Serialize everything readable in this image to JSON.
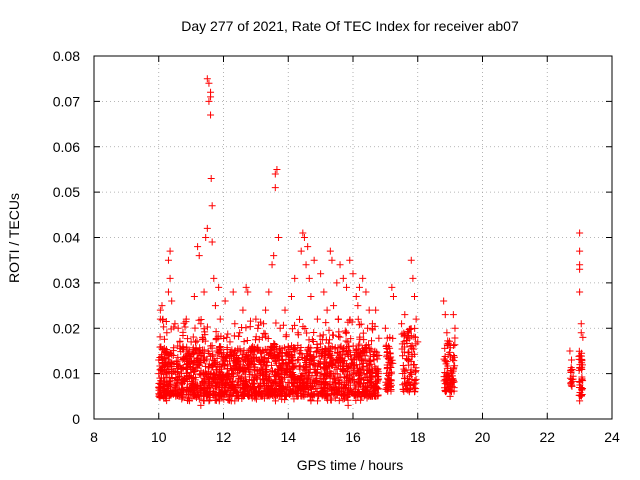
{
  "chart_data": {
    "type": "scatter",
    "title": "Day 277 of 2021, Rate Of TEC Index for receiver ab07",
    "xlabel": "GPS time / hours",
    "ylabel": "ROTI / TECUs",
    "xlim": [
      8,
      24
    ],
    "ylim": [
      0,
      0.08
    ],
    "x_ticks": [
      "8",
      "10",
      "12",
      "14",
      "16",
      "18",
      "20",
      "22",
      "24"
    ],
    "y_ticks": [
      "0",
      "0.01",
      "0.02",
      "0.03",
      "0.04",
      "0.05",
      "0.06",
      "0.07",
      "0.08"
    ],
    "grid": true,
    "marker": "+",
    "color": "#ff0000",
    "series": [
      {
        "points": [
          [
            10.0,
            0.01
          ],
          [
            10.0,
            0.013
          ],
          [
            10.0,
            0.007
          ],
          [
            10.05,
            0.024
          ],
          [
            10.05,
            0.022
          ],
          [
            10.1,
            0.025
          ],
          [
            10.1,
            0.011
          ],
          [
            10.15,
            0.009
          ],
          [
            10.2,
            0.015
          ],
          [
            10.25,
            0.019
          ],
          [
            10.3,
            0.028
          ],
          [
            10.3,
            0.035
          ],
          [
            10.35,
            0.037
          ],
          [
            10.35,
            0.031
          ],
          [
            10.4,
            0.026
          ],
          [
            10.45,
            0.014
          ],
          [
            10.5,
            0.021
          ],
          [
            10.55,
            0.012
          ],
          [
            10.6,
            0.02
          ],
          [
            10.65,
            0.017
          ],
          [
            10.7,
            0.01
          ],
          [
            10.8,
            0.013
          ],
          [
            10.85,
            0.022
          ],
          [
            10.9,
            0.015
          ],
          [
            11.0,
            0.017
          ],
          [
            11.05,
            0.011
          ],
          [
            11.1,
            0.027
          ],
          [
            11.15,
            0.012
          ],
          [
            11.2,
            0.038
          ],
          [
            11.25,
            0.036
          ],
          [
            11.3,
            0.021
          ],
          [
            11.35,
            0.018
          ],
          [
            11.4,
            0.028
          ],
          [
            11.45,
            0.04
          ],
          [
            11.5,
            0.042
          ],
          [
            11.5,
            0.075
          ],
          [
            11.55,
            0.074
          ],
          [
            11.55,
            0.07
          ],
          [
            11.6,
            0.072
          ],
          [
            11.6,
            0.067
          ],
          [
            11.6,
            0.071
          ],
          [
            11.62,
            0.053
          ],
          [
            11.65,
            0.047
          ],
          [
            11.65,
            0.039
          ],
          [
            11.7,
            0.031
          ],
          [
            11.75,
            0.025
          ],
          [
            11.8,
            0.015
          ],
          [
            11.85,
            0.029
          ],
          [
            11.9,
            0.022
          ],
          [
            12.0,
            0.013
          ],
          [
            12.05,
            0.026
          ],
          [
            12.1,
            0.018
          ],
          [
            12.2,
            0.017
          ],
          [
            12.3,
            0.028
          ],
          [
            12.35,
            0.021
          ],
          [
            12.4,
            0.014
          ],
          [
            12.5,
            0.019
          ],
          [
            12.6,
            0.024
          ],
          [
            12.7,
            0.029
          ],
          [
            12.75,
            0.028
          ],
          [
            12.8,
            0.012
          ],
          [
            12.9,
            0.016
          ],
          [
            13.0,
            0.022
          ],
          [
            13.1,
            0.013
          ],
          [
            13.2,
            0.018
          ],
          [
            13.3,
            0.024
          ],
          [
            13.4,
            0.028
          ],
          [
            13.5,
            0.034
          ],
          [
            13.55,
            0.036
          ],
          [
            13.6,
            0.051
          ],
          [
            13.6,
            0.054
          ],
          [
            13.65,
            0.055
          ],
          [
            13.7,
            0.04
          ],
          [
            13.75,
            0.02
          ],
          [
            13.8,
            0.011
          ],
          [
            13.9,
            0.024
          ],
          [
            14.0,
            0.016
          ],
          [
            14.1,
            0.027
          ],
          [
            14.2,
            0.031
          ],
          [
            14.3,
            0.019
          ],
          [
            14.4,
            0.037
          ],
          [
            14.45,
            0.041
          ],
          [
            14.5,
            0.04
          ],
          [
            14.55,
            0.034
          ],
          [
            14.6,
            0.038
          ],
          [
            14.65,
            0.031
          ],
          [
            14.7,
            0.027
          ],
          [
            14.8,
            0.035
          ],
          [
            14.9,
            0.022
          ],
          [
            15.0,
            0.032
          ],
          [
            15.1,
            0.028
          ],
          [
            15.2,
            0.024
          ],
          [
            15.3,
            0.037
          ],
          [
            15.35,
            0.035
          ],
          [
            15.4,
            0.025
          ],
          [
            15.5,
            0.03
          ],
          [
            15.55,
            0.022
          ],
          [
            15.6,
            0.034
          ],
          [
            15.7,
            0.031
          ],
          [
            15.8,
            0.029
          ],
          [
            15.9,
            0.035
          ],
          [
            16.0,
            0.032
          ],
          [
            16.1,
            0.027
          ],
          [
            16.15,
            0.025
          ],
          [
            16.2,
            0.029
          ],
          [
            16.3,
            0.031
          ],
          [
            16.4,
            0.028
          ],
          [
            16.5,
            0.024
          ],
          [
            16.6,
            0.021
          ],
          [
            16.7,
            0.024
          ],
          [
            16.8,
            0.014
          ],
          [
            17.0,
            0.02
          ],
          [
            17.1,
            0.016
          ],
          [
            17.2,
            0.029
          ],
          [
            17.25,
            0.027
          ],
          [
            17.5,
            0.021
          ],
          [
            17.6,
            0.023
          ],
          [
            17.8,
            0.035
          ],
          [
            17.85,
            0.031
          ],
          [
            17.9,
            0.027
          ],
          [
            17.95,
            0.022
          ],
          [
            18.0,
            0.017
          ],
          [
            18.8,
            0.026
          ],
          [
            18.85,
            0.023
          ],
          [
            18.9,
            0.019
          ],
          [
            19.1,
            0.023
          ],
          [
            19.15,
            0.02
          ],
          [
            22.7,
            0.015
          ],
          [
            22.75,
            0.013
          ],
          [
            23.0,
            0.041
          ],
          [
            23.0,
            0.037
          ],
          [
            23.0,
            0.034
          ],
          [
            23.0,
            0.033
          ],
          [
            23.0,
            0.028
          ],
          [
            23.05,
            0.021
          ],
          [
            23.05,
            0.019
          ],
          [
            23.1,
            0.018
          ],
          [
            12.2,
            0.005
          ],
          [
            11.3,
            0.003
          ],
          [
            15.85,
            0.003
          ],
          [
            16.6,
            0.005
          ],
          [
            14.7,
            0.004
          ],
          [
            17.9,
            0.006
          ],
          [
            19.0,
            0.005
          ],
          [
            23.0,
            0.004
          ]
        ]
      }
    ]
  }
}
